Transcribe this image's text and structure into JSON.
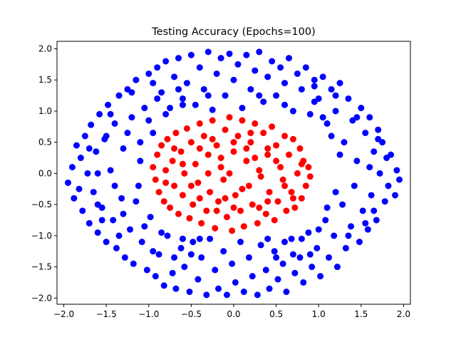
{
  "chart_data": {
    "type": "scatter",
    "title": "Testing Accuracy (Epochs=100)",
    "xlabel": "",
    "ylabel": "",
    "xlim": [
      -2.08,
      2.08
    ],
    "ylim": [
      -2.1,
      2.12
    ],
    "x_ticks": [
      -2.0,
      -1.5,
      -1.0,
      -0.5,
      0.0,
      0.5,
      1.0,
      1.5,
      2.0
    ],
    "x_tick_labels": [
      "−2.0",
      "−1.5",
      "−1.0",
      "−0.5",
      "0.0",
      "0.5",
      "1.0",
      "1.5",
      "2.0"
    ],
    "y_ticks": [
      -2.0,
      -1.5,
      -1.0,
      -0.5,
      0.0,
      0.5,
      1.0,
      1.5,
      2.0
    ],
    "y_tick_labels": [
      "−2.0",
      "−1.5",
      "−1.0",
      "−0.5",
      "0.0",
      "0.5",
      "1.0",
      "1.5",
      "2.0"
    ],
    "grid": false,
    "legend": "none",
    "colors": {
      "outer": "#0000ff",
      "inner": "#ff0000"
    },
    "series": [
      {
        "color": "#0000ff",
        "points": [
          [
            -1.95,
            -0.15
          ],
          [
            -1.9,
            0.1
          ],
          [
            -1.88,
            -0.4
          ],
          [
            -1.85,
            0.45
          ],
          [
            -1.82,
            -0.25
          ],
          [
            -1.8,
            0.25
          ],
          [
            -1.78,
            -0.6
          ],
          [
            -1.75,
            0.6
          ],
          [
            -1.72,
            0.0
          ],
          [
            -1.7,
            -0.8
          ],
          [
            -1.68,
            0.78
          ],
          [
            -1.65,
            -0.3
          ],
          [
            -1.62,
            0.35
          ],
          [
            -1.6,
            -0.95
          ],
          [
            -1.58,
            0.95
          ],
          [
            -1.55,
            -0.55
          ],
          [
            -1.52,
            0.55
          ],
          [
            -1.5,
            -1.1
          ],
          [
            -1.48,
            1.1
          ],
          [
            -1.45,
            0.05
          ],
          [
            -1.42,
            -0.75
          ],
          [
            -1.4,
            0.8
          ],
          [
            -1.38,
            -1.2
          ],
          [
            -1.35,
            1.25
          ],
          [
            -1.32,
            -0.4
          ],
          [
            -1.3,
            0.4
          ],
          [
            -1.28,
            -1.35
          ],
          [
            -1.25,
            1.35
          ],
          [
            -1.22,
            -0.9
          ],
          [
            -1.2,
            0.9
          ],
          [
            -1.18,
            -1.45
          ],
          [
            -1.15,
            1.5
          ],
          [
            -1.12,
            -0.2
          ],
          [
            -1.1,
            0.2
          ],
          [
            -1.08,
            -1.1
          ],
          [
            -1.05,
            1.05
          ],
          [
            -1.02,
            -1.55
          ],
          [
            -1.0,
            1.6
          ],
          [
            -0.98,
            -0.7
          ],
          [
            -0.95,
            0.65
          ],
          [
            -0.92,
            -1.65
          ],
          [
            -0.9,
            1.7
          ],
          [
            -0.88,
            -1.3
          ],
          [
            -0.85,
            1.3
          ],
          [
            -0.82,
            -1.8
          ],
          [
            -0.8,
            1.8
          ],
          [
            -0.78,
            -1.0
          ],
          [
            -0.75,
            1.05
          ],
          [
            -0.72,
            -1.6
          ],
          [
            -0.7,
            1.55
          ],
          [
            -0.68,
            -1.85
          ],
          [
            -0.65,
            1.85
          ],
          [
            -0.62,
            -1.2
          ],
          [
            -0.6,
            1.2
          ],
          [
            -0.58,
            -1.5
          ],
          [
            -0.55,
            1.45
          ],
          [
            -0.52,
            -1.9
          ],
          [
            -0.5,
            1.9
          ],
          [
            -0.48,
            -1.1
          ],
          [
            -0.45,
            1.1
          ],
          [
            -0.42,
            -1.7
          ],
          [
            -0.4,
            1.7
          ],
          [
            -0.38,
            -1.35
          ],
          [
            -0.35,
            1.35
          ],
          [
            -0.32,
            -1.95
          ],
          [
            -0.3,
            1.95
          ],
          [
            -0.28,
            -1.05
          ],
          [
            -0.25,
            1.02
          ],
          [
            -0.22,
            -1.55
          ],
          [
            -0.2,
            1.6
          ],
          [
            -0.18,
            -1.85
          ],
          [
            -0.15,
            1.85
          ],
          [
            -0.12,
            -1.25
          ],
          [
            -0.1,
            1.25
          ],
          [
            -0.08,
            -1.95
          ],
          [
            -0.05,
            1.92
          ],
          [
            -0.02,
            -1.45
          ],
          [
            0.0,
            1.5
          ],
          [
            0.02,
            -1.75
          ],
          [
            0.05,
            1.75
          ],
          [
            0.08,
            -1.1
          ],
          [
            0.1,
            1.05
          ],
          [
            0.12,
            -1.9
          ],
          [
            0.15,
            1.9
          ],
          [
            0.18,
            -1.35
          ],
          [
            0.2,
            1.35
          ],
          [
            0.22,
            -1.65
          ],
          [
            0.25,
            1.65
          ],
          [
            0.28,
            -1.95
          ],
          [
            0.3,
            1.95
          ],
          [
            0.32,
            -1.15
          ],
          [
            0.35,
            1.15
          ],
          [
            0.38,
            -1.55
          ],
          [
            0.4,
            1.55
          ],
          [
            0.42,
            -1.85
          ],
          [
            0.45,
            1.8
          ],
          [
            0.48,
            -1.25
          ],
          [
            0.5,
            1.25
          ],
          [
            0.52,
            -1.7
          ],
          [
            0.55,
            1.7
          ],
          [
            0.58,
            -1.45
          ],
          [
            0.6,
            1.45
          ],
          [
            0.62,
            -1.9
          ],
          [
            0.65,
            1.85
          ],
          [
            0.68,
            -1.05
          ],
          [
            0.7,
            1.0
          ],
          [
            0.72,
            -1.6
          ],
          [
            0.75,
            1.6
          ],
          [
            0.78,
            -1.35
          ],
          [
            0.8,
            1.35
          ],
          [
            0.82,
            -1.75
          ],
          [
            0.85,
            1.7
          ],
          [
            0.88,
            -0.95
          ],
          [
            0.9,
            0.95
          ],
          [
            0.92,
            -1.5
          ],
          [
            0.95,
            1.5
          ],
          [
            0.98,
            -1.2
          ],
          [
            1.0,
            1.2
          ],
          [
            1.02,
            -1.65
          ],
          [
            1.05,
            1.55
          ],
          [
            1.08,
            -0.75
          ],
          [
            1.1,
            0.8
          ],
          [
            1.12,
            -1.35
          ],
          [
            1.15,
            1.35
          ],
          [
            1.18,
            -1.0
          ],
          [
            1.2,
            1.0
          ],
          [
            1.22,
            -1.5
          ],
          [
            1.25,
            1.45
          ],
          [
            1.28,
            -0.5
          ],
          [
            1.3,
            0.5
          ],
          [
            1.32,
            -1.2
          ],
          [
            1.35,
            1.2
          ],
          [
            1.38,
            -0.85
          ],
          [
            1.4,
            0.85
          ],
          [
            1.42,
            -0.2
          ],
          [
            1.45,
            0.2
          ],
          [
            1.48,
            -1.1
          ],
          [
            1.5,
            1.05
          ],
          [
            1.52,
            -0.6
          ],
          [
            1.55,
            0.65
          ],
          [
            1.58,
            -0.9
          ],
          [
            1.6,
            0.9
          ],
          [
            1.62,
            -0.35
          ],
          [
            1.65,
            0.35
          ],
          [
            1.68,
            -0.75
          ],
          [
            1.7,
            0.7
          ],
          [
            1.72,
            0.0
          ],
          [
            1.75,
            0.5
          ],
          [
            1.78,
            -0.45
          ],
          [
            1.8,
            0.25
          ],
          [
            1.82,
            -0.2
          ],
          [
            1.85,
            0.3
          ],
          [
            1.9,
            -0.35
          ],
          [
            1.92,
            0.05
          ],
          [
            1.95,
            -0.1
          ],
          [
            -1.4,
            -0.2
          ],
          [
            -1.3,
            -0.65
          ],
          [
            -1.25,
            0.65
          ],
          [
            -1.15,
            -0.45
          ],
          [
            -1.1,
            0.5
          ],
          [
            -1.05,
            -0.85
          ],
          [
            -1.0,
            0.85
          ],
          [
            -0.95,
            -1.25
          ],
          [
            -0.9,
            1.2
          ],
          [
            -0.85,
            -0.95
          ],
          [
            -0.8,
            0.95
          ],
          [
            -0.7,
            -1.35
          ],
          [
            -0.65,
            1.35
          ],
          [
            -0.6,
            -1.05
          ],
          [
            -0.5,
            -1.3
          ],
          [
            -0.4,
            -1.05
          ],
          [
            0.4,
            -1.05
          ],
          [
            0.5,
            -1.35
          ],
          [
            0.6,
            -1.1
          ],
          [
            0.7,
            -1.3
          ],
          [
            0.8,
            -1.05
          ],
          [
            0.9,
            -1.3
          ],
          [
            1.0,
            -0.9
          ],
          [
            1.1,
            -0.55
          ],
          [
            1.2,
            -0.3
          ],
          [
            1.25,
            0.3
          ],
          [
            1.15,
            0.6
          ],
          [
            1.05,
            0.9
          ],
          [
            0.95,
            1.15
          ],
          [
            0.6,
            1.1
          ],
          [
            -0.6,
            1.1
          ],
          [
            -0.3,
            1.25
          ],
          [
            0.3,
            1.25
          ],
          [
            -1.35,
            -1.0
          ],
          [
            1.35,
            -1.0
          ],
          [
            -1.6,
            0.0
          ],
          [
            1.6,
            0.1
          ],
          [
            -1.55,
            -0.75
          ],
          [
            1.55,
            -0.8
          ],
          [
            -1.7,
            0.4
          ],
          [
            1.65,
            -0.6
          ],
          [
            -1.45,
            0.95
          ],
          [
            1.45,
            0.9
          ],
          [
            -1.2,
            1.3
          ],
          [
            1.2,
            1.25
          ],
          [
            -0.95,
            1.45
          ],
          [
            0.95,
            1.4
          ],
          [
            -1.6,
            -0.5
          ],
          [
            1.7,
            0.55
          ],
          [
            -1.5,
            0.6
          ]
        ]
      },
      {
        "color": "#ff0000",
        "points": [
          [
            -0.95,
            0.1
          ],
          [
            -0.92,
            -0.1
          ],
          [
            -0.9,
            0.3
          ],
          [
            -0.88,
            -0.3
          ],
          [
            -0.85,
            0.45
          ],
          [
            -0.82,
            -0.45
          ],
          [
            -0.8,
            0.05
          ],
          [
            -0.78,
            0.55
          ],
          [
            -0.75,
            -0.55
          ],
          [
            -0.72,
            0.2
          ],
          [
            -0.7,
            -0.2
          ],
          [
            -0.68,
            0.65
          ],
          [
            -0.65,
            -0.65
          ],
          [
            -0.62,
            0.35
          ],
          [
            -0.6,
            -0.35
          ],
          [
            -0.58,
            0.0
          ],
          [
            -0.55,
            0.72
          ],
          [
            -0.52,
            -0.72
          ],
          [
            -0.5,
            0.5
          ],
          [
            -0.48,
            -0.5
          ],
          [
            -0.45,
            0.15
          ],
          [
            -0.42,
            -0.15
          ],
          [
            -0.4,
            0.8
          ],
          [
            -0.38,
            -0.8
          ],
          [
            -0.35,
            0.6
          ],
          [
            -0.32,
            -0.6
          ],
          [
            -0.3,
            0.3
          ],
          [
            -0.28,
            -0.3
          ],
          [
            -0.25,
            0.85
          ],
          [
            -0.22,
            -0.88
          ],
          [
            -0.2,
            0.45
          ],
          [
            -0.18,
            -0.45
          ],
          [
            -0.15,
            0.1
          ],
          [
            -0.12,
            -0.1
          ],
          [
            -0.1,
            0.7
          ],
          [
            -0.08,
            -0.7
          ],
          [
            -0.05,
            0.9
          ],
          [
            -0.02,
            -0.92
          ],
          [
            0.0,
            0.35
          ],
          [
            0.02,
            -0.35
          ],
          [
            0.05,
            0.6
          ],
          [
            0.08,
            -0.6
          ],
          [
            0.1,
            0.85
          ],
          [
            0.12,
            -0.85
          ],
          [
            0.15,
            0.2
          ],
          [
            0.18,
            -0.2
          ],
          [
            0.2,
            0.5
          ],
          [
            0.22,
            -0.5
          ],
          [
            0.25,
            0.8
          ],
          [
            0.28,
            -0.8
          ],
          [
            0.3,
            0.05
          ],
          [
            0.32,
            -0.05
          ],
          [
            0.35,
            0.65
          ],
          [
            0.38,
            -0.65
          ],
          [
            0.4,
            0.3
          ],
          [
            0.42,
            -0.3
          ],
          [
            0.45,
            0.75
          ],
          [
            0.48,
            -0.75
          ],
          [
            0.5,
            0.45
          ],
          [
            0.52,
            -0.45
          ],
          [
            0.55,
            0.1
          ],
          [
            0.58,
            -0.1
          ],
          [
            0.6,
            0.6
          ],
          [
            0.62,
            -0.6
          ],
          [
            0.65,
            0.3
          ],
          [
            0.68,
            -0.3
          ],
          [
            0.7,
            0.55
          ],
          [
            0.72,
            -0.55
          ],
          [
            0.75,
            0.0
          ],
          [
            0.78,
            0.4
          ],
          [
            0.8,
            -0.4
          ],
          [
            0.82,
            0.2
          ],
          [
            0.85,
            -0.2
          ],
          [
            0.88,
            0.1
          ],
          [
            0.9,
            -0.05
          ],
          [
            -0.05,
            0.0
          ],
          [
            -0.15,
            0.25
          ],
          [
            0.1,
            -0.25
          ],
          [
            -0.3,
            0.0
          ],
          [
            0.25,
            0.25
          ],
          [
            -0.6,
            0.15
          ],
          [
            0.6,
            -0.2
          ],
          [
            -0.4,
            0.4
          ],
          [
            0.4,
            0.4
          ],
          [
            -0.4,
            -0.4
          ],
          [
            0.4,
            -0.45
          ],
          [
            -0.2,
            -0.6
          ],
          [
            0.2,
            0.65
          ],
          [
            0.0,
            -0.55
          ],
          [
            0.0,
            0.5
          ],
          [
            -0.7,
            0.4
          ],
          [
            0.7,
            -0.4
          ],
          [
            -0.5,
            -0.2
          ],
          [
            0.5,
            0.2
          ],
          [
            -0.25,
            0.55
          ],
          [
            0.3,
            -0.55
          ],
          [
            -0.8,
            -0.15
          ],
          [
            0.8,
            0.15
          ],
          [
            -0.1,
            -0.4
          ],
          [
            0.15,
            0.4
          ]
        ]
      }
    ]
  }
}
